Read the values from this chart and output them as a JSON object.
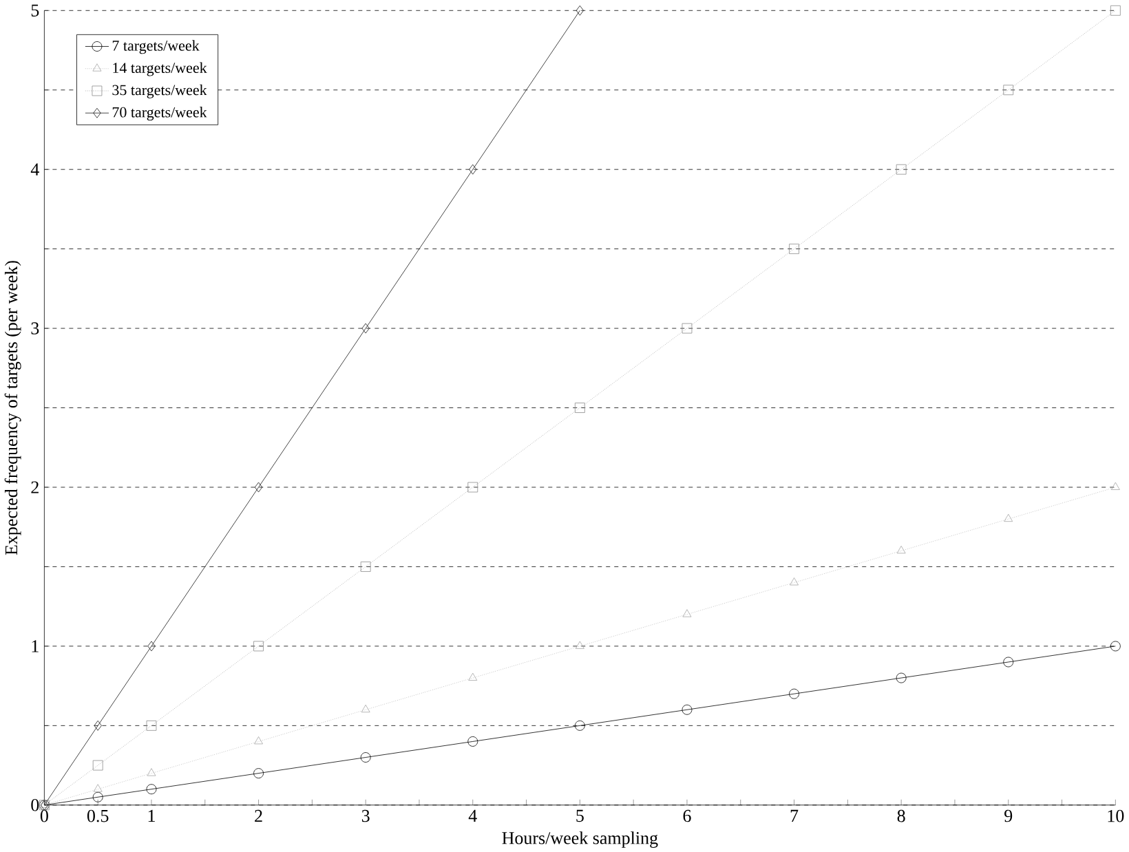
{
  "chart_data": {
    "type": "line",
    "xlabel": "Hours/week sampling",
    "ylabel": "Expected frequency of  targets (per week)",
    "x": [
      0,
      0.5,
      1,
      2,
      3,
      4,
      5,
      6,
      7,
      8,
      9,
      10
    ],
    "series": [
      {
        "name": "7 targets/week",
        "color": "#000000",
        "marker": "circle",
        "line_style": "solid",
        "values": [
          0,
          0.05,
          0.1,
          0.2,
          0.3,
          0.4,
          0.5,
          0.6,
          0.7,
          0.8,
          0.9,
          1.0
        ]
      },
      {
        "name": "14 targets/week",
        "color": "#a6a6a6",
        "marker": "triangle",
        "line_style": "dotted",
        "values": [
          0,
          0.1,
          0.2,
          0.4,
          0.6,
          0.8,
          1.0,
          1.2,
          1.4,
          1.6,
          1.8,
          2.0
        ]
      },
      {
        "name": "35 targets/week",
        "color": "#8c8c8c",
        "marker": "square",
        "line_style": "dotted",
        "values": [
          0,
          0.25,
          0.5,
          1.0,
          1.5,
          2.0,
          2.5,
          3.0,
          3.5,
          4.0,
          4.5,
          5.0
        ]
      },
      {
        "name": "70 targets/week",
        "color": "#1a1a1a",
        "marker": "diamond",
        "line_style": "solid",
        "x": [
          0,
          0.5,
          1,
          2,
          3,
          4,
          5
        ],
        "values": [
          0,
          0.5,
          1,
          2,
          3,
          4,
          5
        ]
      }
    ],
    "xlim": [
      0,
      10
    ],
    "ylim": [
      0,
      5
    ],
    "xticks": [
      0,
      0.5,
      1,
      {
        "value": 1.5,
        "label": null
      },
      2,
      {
        "value": 2.5,
        "label": null
      },
      3,
      {
        "value": 3.5,
        "label": null
      },
      4,
      {
        "value": 4.5,
        "label": null
      },
      5,
      {
        "value": 5.5,
        "label": null
      },
      6,
      {
        "value": 6.5,
        "label": null
      },
      7,
      {
        "value": 7.5,
        "label": null
      },
      8,
      {
        "value": 8.5,
        "label": null
      },
      9,
      {
        "value": 9.5,
        "label": null
      },
      10
    ],
    "yticks": [
      0,
      {
        "value": 0.5,
        "label": null
      },
      1,
      {
        "value": 1.5,
        "label": null
      },
      2,
      {
        "value": 2.5,
        "label": null
      },
      3,
      {
        "value": 3.5,
        "label": null
      },
      4,
      {
        "value": 4.5,
        "label": null
      },
      5
    ],
    "grid": "y",
    "legend": "top left"
  }
}
